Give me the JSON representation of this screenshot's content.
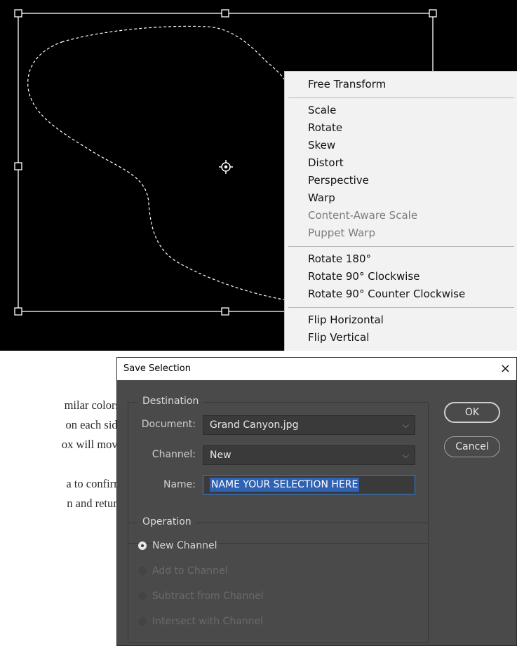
{
  "context_menu": {
    "items": [
      {
        "label": "Free Transform",
        "enabled": true
      },
      {
        "label": "Scale",
        "enabled": true
      },
      {
        "label": "Rotate",
        "enabled": true
      },
      {
        "label": "Skew",
        "enabled": true
      },
      {
        "label": "Distort",
        "enabled": true
      },
      {
        "label": "Perspective",
        "enabled": true
      },
      {
        "label": "Warp",
        "enabled": true
      },
      {
        "label": "Content-Aware Scale",
        "enabled": false
      },
      {
        "label": "Puppet Warp",
        "enabled": false
      },
      {
        "label": "Rotate 180°",
        "enabled": true
      },
      {
        "label": "Rotate 90° Clockwise",
        "enabled": true
      },
      {
        "label": "Rotate 90° Counter Clockwise",
        "enabled": true
      },
      {
        "label": "Flip Horizontal",
        "enabled": true
      },
      {
        "label": "Flip Vertical",
        "enabled": true
      }
    ]
  },
  "background_text": {
    "lines": [
      "milar colors.",
      "on each side",
      "ox will move",
      "a to confirm",
      "n and return"
    ]
  },
  "dialog": {
    "title": "Save Selection",
    "close_glyph": "×",
    "destination": {
      "legend": "Destination",
      "document_label": "Document:",
      "document_value": "Grand Canyon.jpg",
      "channel_label": "Channel:",
      "channel_value": "New",
      "name_label": "Name:",
      "name_value": "NAME YOUR SELECTION HERE"
    },
    "operation": {
      "legend": "Operation",
      "options": [
        {
          "label": "New Channel",
          "selected": true,
          "enabled": true
        },
        {
          "label": "Add to Channel",
          "selected": false,
          "enabled": false
        },
        {
          "label": "Subtract from Channel",
          "selected": false,
          "enabled": false
        },
        {
          "label": "Intersect with Channel",
          "selected": false,
          "enabled": false
        }
      ]
    },
    "buttons": {
      "ok": "OK",
      "cancel": "Cancel"
    },
    "chevron": "⌵"
  },
  "icons": {
    "transform_center": "crosshair-center-icon",
    "dropdown": "chevron-down-icon",
    "close": "close-icon"
  }
}
